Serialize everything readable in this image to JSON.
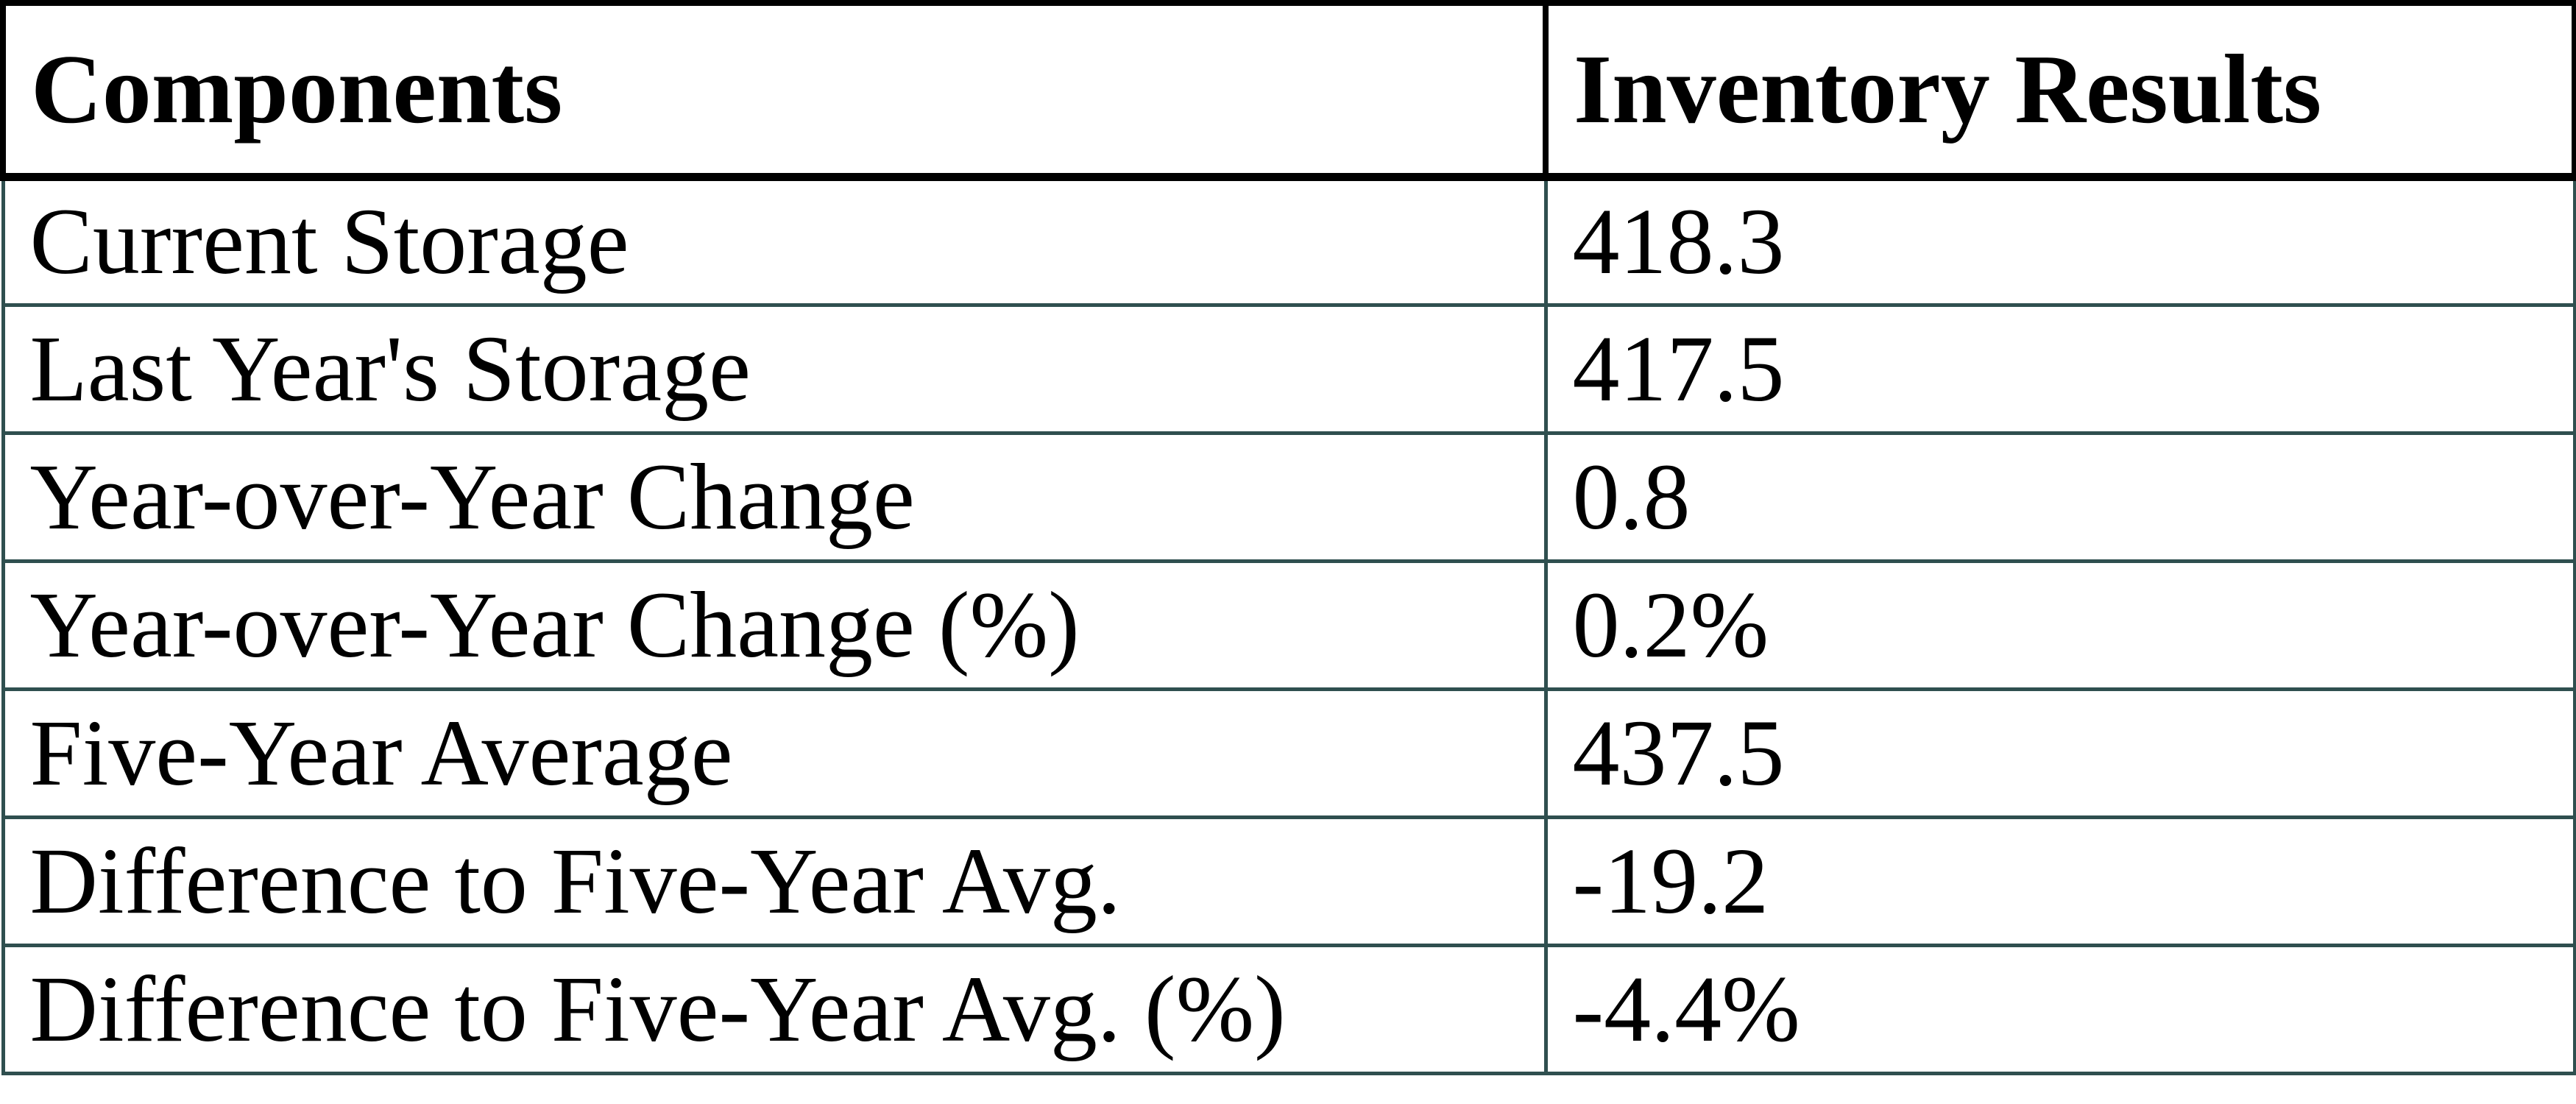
{
  "chart_data": {
    "type": "table",
    "columns": [
      "Components",
      "Inventory Results"
    ],
    "rows": [
      [
        "Current Storage",
        "418.3"
      ],
      [
        "Last Year's Storage",
        "417.5"
      ],
      [
        "Year-over-Year Change",
        "0.8"
      ],
      [
        "Year-over-Year Change (%)",
        "0.2%"
      ],
      [
        "Five-Year Average",
        "437.5"
      ],
      [
        "Difference to Five-Year Avg.",
        "-19.2"
      ],
      [
        "Difference to Five-Year Avg. (%)",
        "-4.4%"
      ]
    ]
  },
  "colors": {
    "header_border": "#000000",
    "row_border": "#2F4F4F",
    "text": "#000000",
    "background": "#FFFFFF"
  }
}
